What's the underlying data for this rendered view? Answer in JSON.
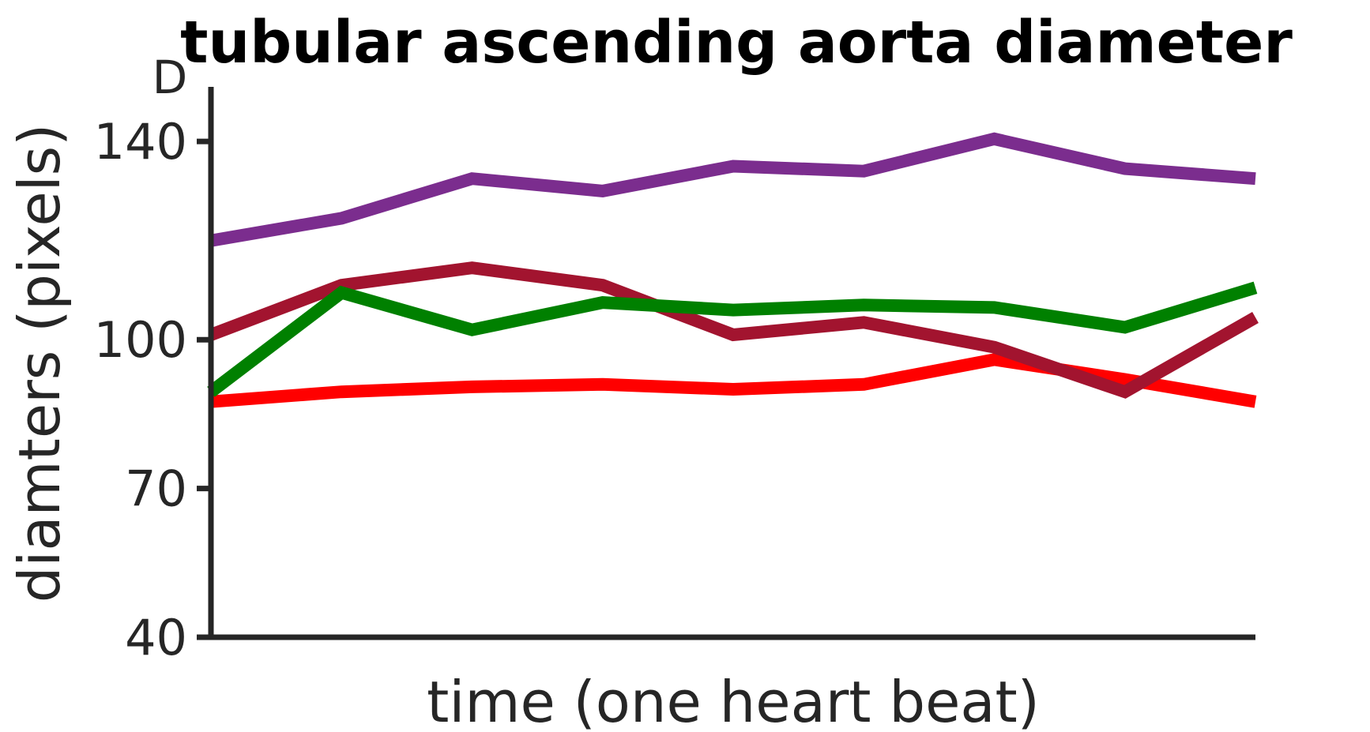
{
  "chart_data": {
    "type": "line",
    "title": "tubular ascending aorta diameter",
    "panel_label": "D",
    "xlabel": "time (one heart beat)",
    "ylabel": "diamters (pixels)",
    "ylim": [
      40,
      151
    ],
    "xlim": [
      1,
      9
    ],
    "yticks": [
      40,
      70,
      100,
      140
    ],
    "x": [
      1,
      2,
      3,
      4,
      5,
      6,
      7,
      8,
      9
    ],
    "grid": false,
    "legend": "none",
    "series": [
      {
        "color": "#FF0000",
        "values": [
          87.5,
          89.5,
          90.5,
          91.0,
          90.0,
          91.0,
          96.0,
          92.0,
          87.5
        ]
      },
      {
        "color": "#7B2D8E",
        "values": [
          120.0,
          124.5,
          132.5,
          130.0,
          135.0,
          134.0,
          140.5,
          134.5,
          132.5
        ]
      },
      {
        "color": "#A2142F",
        "values": [
          101.0,
          111.0,
          114.5,
          111.0,
          101.0,
          103.5,
          98.5,
          89.5,
          104.5
        ]
      },
      {
        "color": "#008000",
        "values": [
          89.5,
          109.5,
          102.0,
          107.5,
          106.0,
          107.0,
          106.5,
          102.5,
          110.5
        ]
      }
    ]
  }
}
